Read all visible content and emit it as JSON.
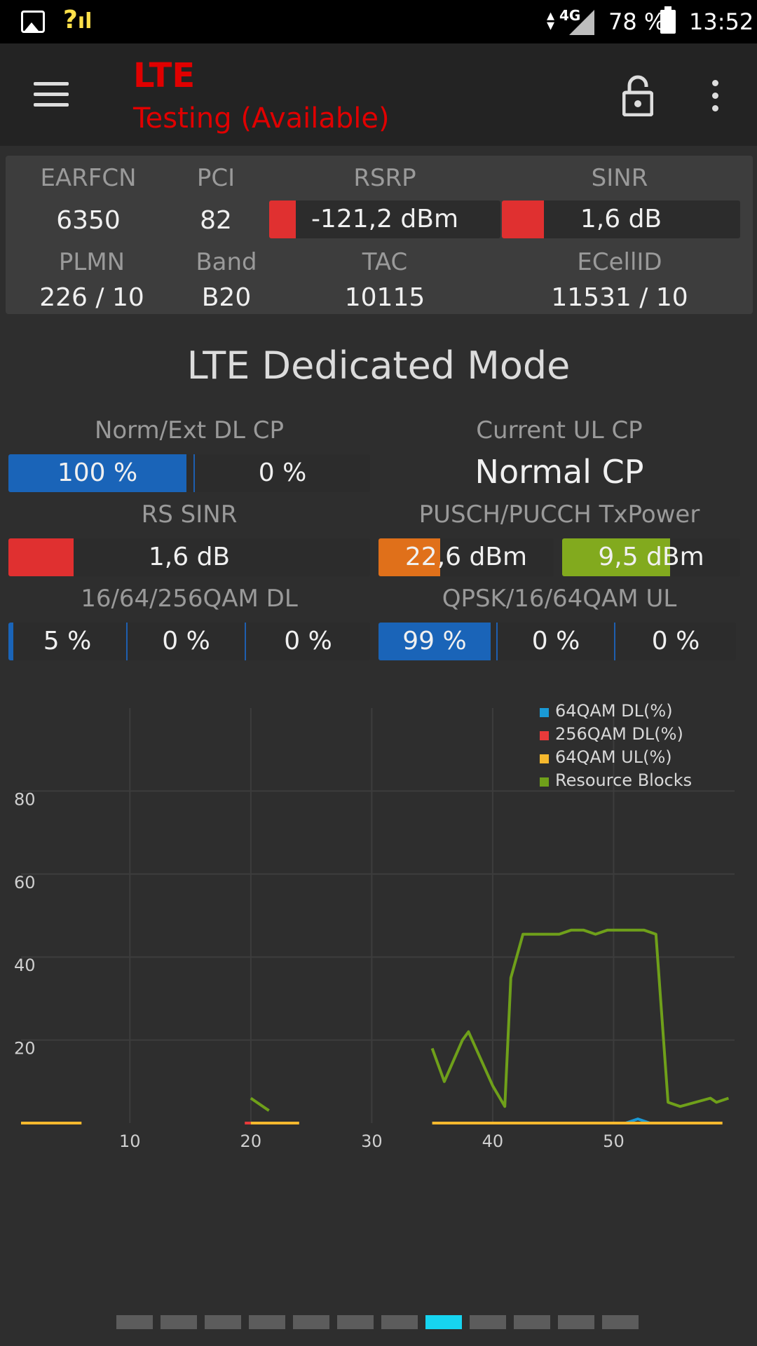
{
  "status_bar": {
    "icons": [
      "gallery-icon",
      "signal-unknown-icon",
      "data-arrows-icon",
      "4g-signal-icon",
      "battery-icon"
    ],
    "network_type": "4G",
    "battery": "78 %",
    "time": "13:52"
  },
  "app_bar": {
    "title": "LTE",
    "subtitle": "Testing (Available)",
    "icons": [
      "menu-icon",
      "lock-open-icon",
      "more-vert-icon"
    ]
  },
  "info": {
    "earfcn_label": "EARFCN",
    "earfcn": "6350",
    "pci_label": "PCI",
    "pci": "82",
    "rsrp_label": "RSRP",
    "rsrp": "-121,2 dBm",
    "sinr_label": "SINR",
    "sinr": "1,6 dB",
    "plmn_label": "PLMN",
    "plmn": "226 / 10",
    "band_label": "Band",
    "band": "B20",
    "tac_label": "TAC",
    "tac": "10115",
    "ecellid_label": "ECellID",
    "ecellid": "11531 / 10"
  },
  "dedicated": {
    "title": "LTE Dedicated Mode",
    "norm_ext_label": "Norm/Ext DL CP",
    "norm_pct": "100 %",
    "norm_fraction": 1.0,
    "ext_pct": "0 %",
    "current_ul_label": "Current UL CP",
    "current_ul_value": "Normal CP",
    "rs_sinr_label": "RS SINR",
    "rs_sinr_value": "1,6 dB",
    "pusch_label": "PUSCH/PUCCH TxPower",
    "pusch_value": "22,6 dBm",
    "pucch_value": "9,5 dBm",
    "qam_dl_label": "16/64/256QAM DL",
    "qam_dl": [
      "5 %",
      "0 %",
      "0 %"
    ],
    "qam_ul_label": "QPSK/16/64QAM UL",
    "qam_ul": [
      "99 %",
      "0 %",
      "0 %"
    ]
  },
  "colors": {
    "red": "#e03030",
    "blue": "#1a64b8",
    "orange": "#e0701a",
    "green": "#82aa1e",
    "accent_pager": "#16d4f0"
  },
  "chart_data": {
    "type": "line",
    "title": "",
    "xlabel": "",
    "ylabel": "",
    "xlim": [
      1,
      60
    ],
    "ylim": [
      0,
      100
    ],
    "x_ticks": [
      "10",
      "20",
      "30",
      "40",
      "50"
    ],
    "y_ticks": [
      "20",
      "40",
      "60",
      "80"
    ],
    "grid": true,
    "legend_position": "top-right",
    "series": [
      {
        "name": "64QAM DL(%)",
        "color": "#1a9ad6",
        "points": [
          [
            51,
            0
          ],
          [
            52,
            1
          ],
          [
            53,
            0
          ]
        ]
      },
      {
        "name": "256QAM DL(%)",
        "color": "#e83a3a",
        "points": [
          [
            19.5,
            0
          ],
          [
            20,
            0
          ]
        ]
      },
      {
        "name": "64QAM UL(%)",
        "color": "#f5b82e",
        "segments": [
          [
            [
              1,
              0
            ],
            [
              6,
              0
            ]
          ],
          [
            [
              20,
              0
            ],
            [
              24,
              0
            ]
          ],
          [
            [
              35,
              0
            ],
            [
              59,
              0
            ]
          ]
        ]
      },
      {
        "name": "Resource Blocks",
        "color": "#6fa01a",
        "segments": [
          [
            [
              20,
              6
            ],
            [
              21.5,
              3
            ]
          ],
          [
            [
              35,
              18
            ],
            [
              36,
              10
            ],
            [
              37.5,
              20
            ],
            [
              38,
              22
            ],
            [
              40,
              9
            ],
            [
              41,
              4
            ],
            [
              41.5,
              35
            ],
            [
              42.5,
              45.5
            ],
            [
              45.5,
              45.5
            ],
            [
              46.5,
              46.5
            ],
            [
              47.5,
              46.5
            ],
            [
              48.5,
              45.5
            ],
            [
              49.5,
              46.5
            ],
            [
              52.5,
              46.5
            ],
            [
              53.5,
              45.5
            ],
            [
              54.5,
              5
            ],
            [
              55.5,
              4
            ],
            [
              58,
              6
            ],
            [
              58.5,
              5
            ],
            [
              59.5,
              6
            ]
          ]
        ]
      }
    ]
  },
  "pager": {
    "count": 12,
    "active_index": 7
  }
}
